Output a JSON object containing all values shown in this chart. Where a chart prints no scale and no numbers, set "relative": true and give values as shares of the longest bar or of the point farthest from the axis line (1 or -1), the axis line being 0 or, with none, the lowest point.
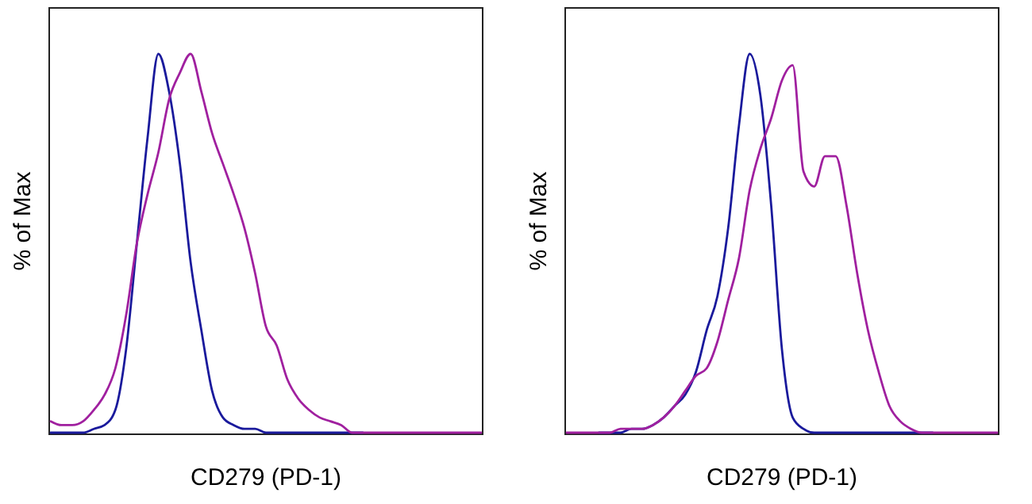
{
  "chart_data": [
    {
      "type": "line",
      "relative": true,
      "xlabel": "CD279 (PD-1)",
      "ylabel": "% of Max",
      "categories": [
        null,
        null,
        null,
        null,
        null,
        null,
        null,
        null,
        null,
        null,
        null,
        null,
        null,
        null,
        null,
        null,
        null,
        null,
        null,
        null,
        null,
        null,
        null,
        null,
        null,
        null,
        null,
        null,
        null,
        null,
        null,
        null,
        null,
        null,
        null,
        null,
        null,
        null,
        null,
        null,
        null
      ],
      "series": [
        {
          "color": "#1a1a9c",
          "values": [
            0,
            0,
            0,
            0,
            0.01,
            0.02,
            0.06,
            0.22,
            0.5,
            0.78,
            1,
            0.9,
            0.71,
            0.45,
            0.27,
            0.11,
            0.04,
            0.02,
            0.01,
            0.01,
            0,
            0,
            0,
            0,
            0,
            0,
            0,
            0,
            0,
            0,
            null,
            null,
            null,
            null,
            null,
            null,
            null,
            null,
            null,
            null,
            null
          ]
        },
        {
          "color": "#a0209f",
          "values": [
            0.03,
            0.02,
            0.02,
            0.03,
            0.06,
            0.1,
            0.17,
            0.31,
            0.5,
            0.63,
            0.74,
            0.88,
            0.95,
            1,
            0.9,
            0.79,
            0.71,
            0.63,
            0.54,
            0.42,
            0.28,
            0.23,
            0.14,
            0.09,
            0.06,
            0.04,
            0.03,
            0.02,
            0,
            0,
            0,
            0,
            0,
            0,
            0,
            0,
            0,
            0,
            0,
            0,
            0
          ]
        }
      ]
    },
    {
      "type": "line",
      "relative": true,
      "xlabel": "CD279 (PD-1)",
      "ylabel": "% of Max",
      "categories": [
        null,
        null,
        null,
        null,
        null,
        null,
        null,
        null,
        null,
        null,
        null,
        null,
        null,
        null,
        null,
        null,
        null,
        null,
        null,
        null,
        null,
        null,
        null,
        null,
        null,
        null,
        null,
        null,
        null,
        null,
        null,
        null,
        null,
        null,
        null,
        null,
        null,
        null,
        null,
        null,
        null
      ],
      "series": [
        {
          "color": "#1a1a9c",
          "values": [
            null,
            null,
            null,
            0,
            0,
            0,
            0.01,
            0.01,
            0.02,
            0.04,
            0.07,
            0.1,
            0.16,
            0.27,
            0.36,
            0.54,
            0.81,
            1,
            0.89,
            0.6,
            0.22,
            0.04,
            0.01,
            0,
            0,
            0,
            0,
            0,
            0,
            0,
            0,
            0,
            0,
            0,
            0,
            null,
            null,
            null,
            null,
            null,
            null
          ]
        },
        {
          "color": "#a0209f",
          "values": [
            0,
            0,
            0,
            0,
            0,
            0.01,
            0.01,
            0.01,
            0.02,
            0.04,
            0.07,
            0.11,
            0.15,
            0.17,
            0.24,
            0.35,
            0.46,
            0.64,
            0.75,
            0.83,
            0.93,
            0.97,
            0.69,
            0.65,
            0.73,
            0.73,
            0.6,
            0.42,
            0.27,
            0.16,
            0.07,
            0.03,
            0.01,
            0,
            0,
            0,
            0,
            0,
            0,
            0,
            0
          ]
        }
      ]
    }
  ]
}
